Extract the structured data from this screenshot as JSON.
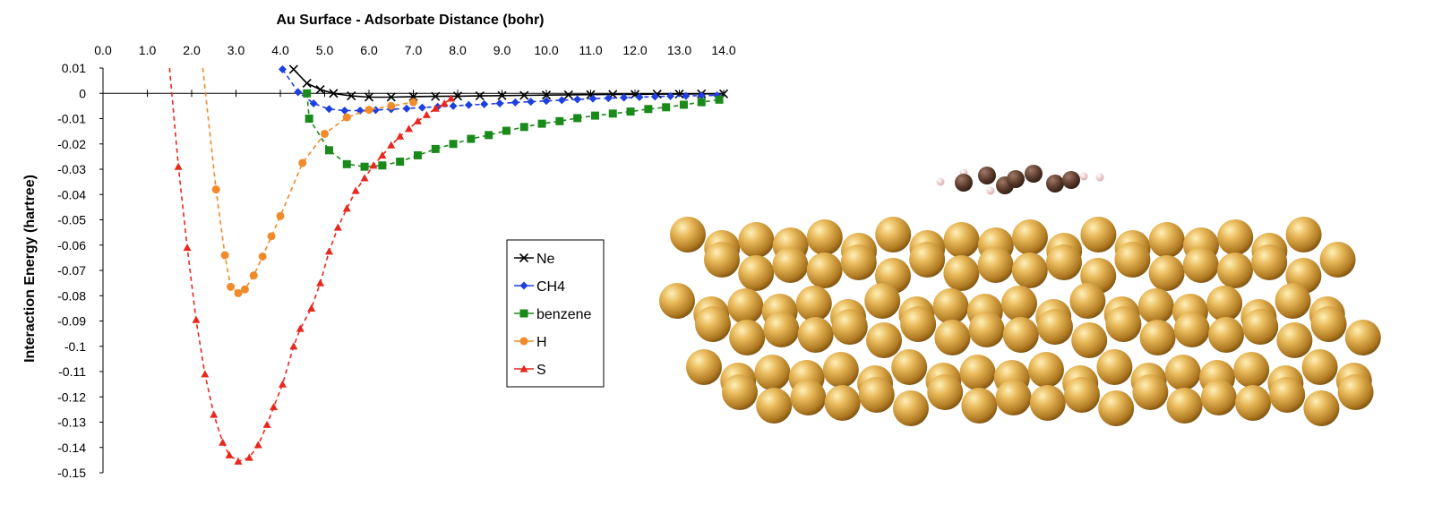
{
  "chart_data": {
    "type": "line",
    "title": "Au Surface - Adsorbate Distance (bohr)",
    "xlabel": "Au Surface - Adsorbate Distance (bohr)",
    "ylabel": "Interaction Energy (hartree)",
    "xlim": [
      0,
      14
    ],
    "ylim": [
      -0.15,
      0.01
    ],
    "x_ticks": [
      "0.0",
      "1.0",
      "2.0",
      "3.0",
      "4.0",
      "5.0",
      "6.0",
      "7.0",
      "8.0",
      "9.0",
      "10.0",
      "11.0",
      "12.0",
      "13.0",
      "14.0"
    ],
    "y_ticks": [
      "0.01",
      "0",
      "-0.01",
      "-0.02",
      "-0.03",
      "-0.04",
      "-0.05",
      "-0.06",
      "-0.07",
      "-0.08",
      "-0.09",
      "-0.1",
      "-0.11",
      "-0.12",
      "-0.13",
      "-0.14",
      "-0.15"
    ],
    "x_axis_position": "top",
    "grid": false,
    "legend_position": "center-right",
    "series": [
      {
        "name": "Ne",
        "color": "#000000",
        "marker": "x",
        "line": "solid",
        "points": [
          [
            4.3,
            0.0095
          ],
          [
            4.6,
            0.004
          ],
          [
            4.9,
            0.0015
          ],
          [
            5.2,
            0.0
          ],
          [
            5.6,
            -0.001
          ],
          [
            6.0,
            -0.0015
          ],
          [
            6.5,
            -0.0015
          ],
          [
            7.0,
            -0.0013
          ],
          [
            7.5,
            -0.0012
          ],
          [
            8.0,
            -0.0011
          ],
          [
            8.5,
            -0.001
          ],
          [
            9.0,
            -0.0009
          ],
          [
            9.5,
            -0.0008
          ],
          [
            10.0,
            -0.0007
          ],
          [
            10.5,
            -0.0006
          ],
          [
            11.0,
            -0.0005
          ],
          [
            11.5,
            -0.0004
          ],
          [
            12.0,
            -0.0004
          ],
          [
            12.5,
            -0.0003
          ],
          [
            13.0,
            -0.0003
          ],
          [
            13.5,
            -0.0002
          ],
          [
            14.0,
            -0.0002
          ]
        ]
      },
      {
        "name": "CH4",
        "color": "#1f3fe0",
        "marker": "diamond",
        "line": "dashed",
        "points": [
          [
            4.05,
            0.0095
          ],
          [
            4.4,
            0.0005
          ],
          [
            4.75,
            -0.004
          ],
          [
            5.1,
            -0.0062
          ],
          [
            5.45,
            -0.0068
          ],
          [
            5.8,
            -0.0068
          ],
          [
            6.15,
            -0.0066
          ],
          [
            6.5,
            -0.0063
          ],
          [
            6.85,
            -0.006
          ],
          [
            7.2,
            -0.0056
          ],
          [
            7.55,
            -0.0053
          ],
          [
            7.9,
            -0.005
          ],
          [
            8.25,
            -0.0046
          ],
          [
            8.6,
            -0.0043
          ],
          [
            8.95,
            -0.004
          ],
          [
            9.3,
            -0.0036
          ],
          [
            9.65,
            -0.0033
          ],
          [
            10.0,
            -0.003
          ],
          [
            10.35,
            -0.0027
          ],
          [
            10.7,
            -0.0024
          ],
          [
            11.05,
            -0.0021
          ],
          [
            11.4,
            -0.0019
          ],
          [
            11.75,
            -0.0017
          ],
          [
            12.1,
            -0.0015
          ],
          [
            12.45,
            -0.0013
          ],
          [
            12.8,
            -0.0011
          ],
          [
            13.15,
            -0.001
          ],
          [
            13.5,
            -0.0009
          ],
          [
            13.85,
            -0.0008
          ]
        ]
      },
      {
        "name": "benzene",
        "color": "#1a8a1a",
        "marker": "square",
        "line": "dashed",
        "points": [
          [
            4.6,
            0.0
          ],
          [
            4.65,
            -0.01
          ],
          [
            5.1,
            -0.0225
          ],
          [
            5.5,
            -0.028
          ],
          [
            5.9,
            -0.029
          ],
          [
            6.3,
            -0.0285
          ],
          [
            6.7,
            -0.027
          ],
          [
            7.1,
            -0.0245
          ],
          [
            7.5,
            -0.022
          ],
          [
            7.9,
            -0.02
          ],
          [
            8.3,
            -0.018
          ],
          [
            8.7,
            -0.0165
          ],
          [
            9.1,
            -0.0148
          ],
          [
            9.5,
            -0.0133
          ],
          [
            9.9,
            -0.012
          ],
          [
            10.3,
            -0.011
          ],
          [
            10.7,
            -0.0098
          ],
          [
            11.1,
            -0.0088
          ],
          [
            11.5,
            -0.008
          ],
          [
            11.9,
            -0.0072
          ],
          [
            12.3,
            -0.0062
          ],
          [
            12.7,
            -0.0055
          ],
          [
            13.1,
            -0.0045
          ],
          [
            13.5,
            -0.0035
          ],
          [
            13.9,
            -0.0025
          ]
        ]
      },
      {
        "name": "H",
        "color": "#f08a2a",
        "marker": "circle",
        "line": "dashed",
        "points": [
          [
            2.25,
            0.01
          ],
          [
            2.55,
            -0.038
          ],
          [
            2.75,
            -0.064
          ],
          [
            2.88,
            -0.0765
          ],
          [
            3.05,
            -0.079
          ],
          [
            3.2,
            -0.0775
          ],
          [
            3.4,
            -0.072
          ],
          [
            3.6,
            -0.0645
          ],
          [
            3.8,
            -0.0565
          ],
          [
            4.0,
            -0.0485
          ],
          [
            4.5,
            -0.0275
          ],
          [
            5.0,
            -0.016
          ],
          [
            5.5,
            -0.0095
          ],
          [
            6.0,
            -0.0065
          ],
          [
            6.5,
            -0.005
          ],
          [
            7.0,
            -0.0035
          ]
        ]
      },
      {
        "name": "S",
        "color": "#e8281e",
        "marker": "triangle",
        "line": "dashed",
        "points": [
          [
            1.5,
            0.01
          ],
          [
            1.7,
            -0.029
          ],
          [
            1.9,
            -0.061
          ],
          [
            2.1,
            -0.0895
          ],
          [
            2.3,
            -0.111
          ],
          [
            2.5,
            -0.127
          ],
          [
            2.7,
            -0.138
          ],
          [
            2.85,
            -0.143
          ],
          [
            3.05,
            -0.1455
          ],
          [
            3.3,
            -0.144
          ],
          [
            3.5,
            -0.139
          ],
          [
            3.7,
            -0.131
          ],
          [
            3.85,
            -0.124
          ],
          [
            4.05,
            -0.115
          ],
          [
            4.3,
            -0.1
          ],
          [
            4.45,
            -0.093
          ],
          [
            4.7,
            -0.085
          ],
          [
            4.9,
            -0.075
          ],
          [
            5.1,
            -0.0625
          ],
          [
            5.3,
            -0.053
          ],
          [
            5.5,
            -0.0455
          ],
          [
            5.7,
            -0.0385
          ],
          [
            5.9,
            -0.0335
          ],
          [
            6.1,
            -0.0285
          ],
          [
            6.3,
            -0.0245
          ],
          [
            6.5,
            -0.0205
          ],
          [
            6.7,
            -0.017
          ],
          [
            6.9,
            -0.014
          ],
          [
            7.1,
            -0.011
          ],
          [
            7.3,
            -0.0085
          ],
          [
            7.5,
            -0.006
          ],
          [
            7.7,
            -0.004
          ],
          [
            7.85,
            -0.002
          ]
        ]
      }
    ]
  },
  "structure_image": {
    "description_icon": "benzene-on-gold-surface-render",
    "gold_color": "#d9a74a",
    "carbon_color": "#5a3a2a",
    "hydrogen_color": "#f0d0d0"
  }
}
